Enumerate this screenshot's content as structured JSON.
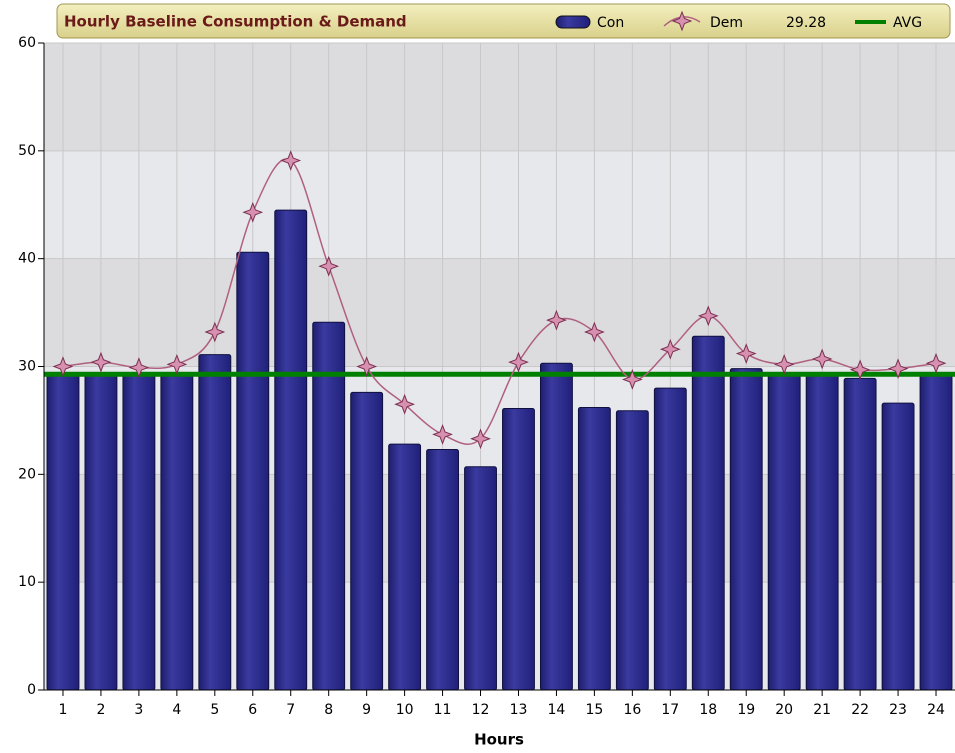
{
  "chart_data": {
    "type": "bar_line",
    "title": "Hourly Baseline Consumption & Demand",
    "x_label": "Hours",
    "categories": [
      "1",
      "2",
      "3",
      "4",
      "5",
      "6",
      "7",
      "8",
      "9",
      "10",
      "11",
      "12",
      "13",
      "14",
      "15",
      "16",
      "17",
      "18",
      "19",
      "20",
      "21",
      "22",
      "23",
      "24"
    ],
    "series": [
      {
        "name": "Con",
        "color": "#2b2b8c",
        "values": [
          29.4,
          29.4,
          29.4,
          29.4,
          31.1,
          40.6,
          44.5,
          34.1,
          27.6,
          22.8,
          22.3,
          20.7,
          26.1,
          30.3,
          26.2,
          25.9,
          28.0,
          32.8,
          29.8,
          29.2,
          29.4,
          28.9,
          26.6,
          29.3
        ]
      },
      {
        "name": "Dem",
        "color": "#b0607f",
        "values": [
          30.0,
          30.4,
          29.9,
          30.2,
          33.2,
          44.3,
          49.1,
          39.3,
          30.0,
          26.5,
          23.7,
          23.3,
          30.4,
          34.3,
          33.2,
          28.8,
          31.6,
          34.7,
          31.2,
          30.2,
          30.7,
          29.7,
          29.8,
          30.3
        ]
      }
    ],
    "average": {
      "name": "AVG",
      "value": 29.28,
      "color": "#008000"
    },
    "ylim": [
      0,
      60
    ],
    "yticks": [
      0,
      10,
      20,
      30,
      40,
      50,
      60
    ],
    "grid": true
  }
}
